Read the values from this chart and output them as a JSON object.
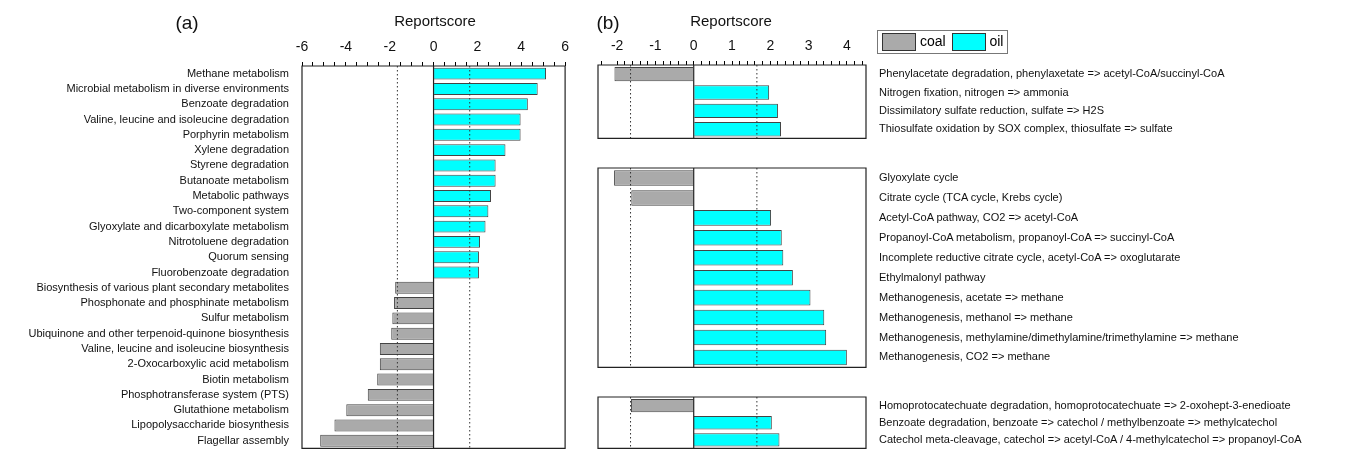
{
  "chart_data": [
    {
      "type": "bar",
      "orientation": "horizontal",
      "title": "(a)",
      "xlabel": "Reportscore",
      "categories": [
        "Methane metabolism",
        "Microbial metabolism in diverse environments",
        "Benzoate degradation",
        "Valine, leucine and isoleucine degradation",
        "Porphyrin metabolism",
        "Xylene degradation",
        "Styrene degradation",
        "Butanoate metabolism",
        "Metabolic pathways",
        "Two-component system",
        "Glyoxylate and dicarboxylate metabolism",
        "Nitrotoluene degradation",
        "Quorum sensing",
        "Fluorobenzoate degradation",
        "Biosynthesis of various plant secondary metabolites",
        "Phosphonate and phosphinate metabolism",
        "Sulfur metabolism",
        "Ubiquinone and other terpenoid-quinone biosynthesis",
        "Valine, leucine and isoleucine biosynthesis",
        "2-Oxocarboxylic acid metabolism",
        "Biotin metabolism",
        "Phosphotransferase system (PTS)",
        "Glutathione metabolism",
        "Lipopolysaccharide biosynthesis",
        "Flagellar assembly"
      ],
      "series": [
        {
          "color": "#aaaaaa",
          "values": [
            null,
            null,
            null,
            null,
            null,
            null,
            null,
            null,
            null,
            null,
            null,
            null,
            null,
            null,
            -1.75,
            -1.8,
            -1.88,
            -1.93,
            -2.45,
            -2.45,
            -2.57,
            -3.0,
            -3.98,
            -4.52,
            -5.17
          ]
        },
        {
          "color": "#00ffff",
          "values": [
            5.13,
            4.75,
            4.3,
            3.97,
            3.97,
            3.28,
            2.83,
            2.83,
            2.62,
            2.5,
            2.37,
            2.12,
            2.07,
            2.07,
            null,
            null,
            null,
            null,
            null,
            null,
            null,
            null,
            null,
            null,
            null
          ]
        }
      ],
      "xlim": [
        -6,
        6
      ],
      "xticks": [
        -6,
        {
          "value": -5.5,
          "label": null
        },
        {
          "value": -5,
          "label": null
        },
        {
          "value": -4.5,
          "label": null
        },
        -4,
        {
          "value": -3.5,
          "label": null
        },
        {
          "value": -3,
          "label": null
        },
        {
          "value": -2.5,
          "label": null
        },
        -2,
        {
          "value": -1.5,
          "label": null
        },
        {
          "value": -1,
          "label": null
        },
        {
          "value": -0.5,
          "label": null
        },
        0,
        {
          "value": 0.5,
          "label": null
        },
        {
          "value": 1,
          "label": null
        },
        {
          "value": 1.5,
          "label": null
        },
        2,
        {
          "value": 2.5,
          "label": null
        },
        {
          "value": 3,
          "label": null
        },
        {
          "value": 3.5,
          "label": null
        },
        4,
        {
          "value": 4.5,
          "label": null
        },
        {
          "value": 5,
          "label": null
        },
        {
          "value": 5.5,
          "label": null
        },
        6
      ],
      "ref_lines": [
        {
          "axis": "x",
          "value": -1.65,
          "line_style": "dotted"
        },
        {
          "axis": "x",
          "value": 1.65,
          "line_style": "dotted"
        }
      ]
    },
    {
      "type": "bar",
      "orientation": "horizontal",
      "title": "(b)",
      "xlabel": "Reportscore",
      "legend": "top",
      "categories": [
        "Phenylacetate degradation, phenylaxetate => acetyl-CoA/succinyl-CoA",
        "Nitrogen fixation, nitrogen => ammonia",
        "Dissimilatory sulfate reduction, sulfate => H2S",
        "Thiosulfate oxidation by SOX complex, thiosulfate => sulfate"
      ],
      "series": [
        {
          "name": "coal",
          "color": "#aaaaaa",
          "values": [
            -2.07,
            null,
            null,
            null
          ]
        },
        {
          "name": "oil",
          "color": "#00ffff",
          "values": [
            null,
            1.97,
            2.2,
            2.28
          ]
        }
      ],
      "xlim": [
        -2.5,
        4.5
      ],
      "xticks": [
        {
          "value": -2.4,
          "label": null
        },
        -2,
        {
          "value": -1.8,
          "label": null
        },
        {
          "value": -1.6,
          "label": null
        },
        {
          "value": -1.4,
          "label": null
        },
        {
          "value": -1.2,
          "label": null
        },
        -1,
        {
          "value": -0.8,
          "label": null
        },
        {
          "value": -0.6,
          "label": null
        },
        {
          "value": -0.4,
          "label": null
        },
        {
          "value": -0.2,
          "label": null
        },
        0,
        {
          "value": 0.2,
          "label": null
        },
        {
          "value": 0.4,
          "label": null
        },
        {
          "value": 0.6,
          "label": null
        },
        {
          "value": 0.8,
          "label": null
        },
        1,
        {
          "value": 1.2,
          "label": null
        },
        {
          "value": 1.4,
          "label": null
        },
        {
          "value": 1.6,
          "label": null
        },
        {
          "value": 1.8,
          "label": null
        },
        2,
        {
          "value": 2.2,
          "label": null
        },
        {
          "value": 2.4,
          "label": null
        },
        {
          "value": 2.6,
          "label": null
        },
        {
          "value": 2.8,
          "label": null
        },
        3,
        {
          "value": 3.2,
          "label": null
        },
        {
          "value": 3.4,
          "label": null
        },
        {
          "value": 3.6,
          "label": null
        },
        {
          "value": 3.8,
          "label": null
        },
        4,
        {
          "value": 4.2,
          "label": null
        },
        {
          "value": 4.4,
          "label": null
        }
      ],
      "ref_lines": [
        {
          "axis": "x",
          "value": -1.65,
          "line_style": "dotted"
        },
        {
          "axis": "x",
          "value": 1.65,
          "line_style": "dotted"
        }
      ]
    },
    {
      "type": "bar",
      "orientation": "horizontal",
      "tick_labels": "y",
      "categories": [
        "Glyoxylate cycle",
        "Citrate cycle (TCA cycle, Krebs cycle)",
        "Acetyl-CoA pathway, CO2 => acetyl-CoA",
        "Propanoyl-CoA metabolism, propanoyl-CoA => succinyl-CoA",
        "Incomplete reductive citrate cycle, acetyl-CoA => oxoglutarate",
        "Ethylmalonyl pathway",
        "Methanogenesis, acetate => methane",
        "Methanogenesis, methanol => methane",
        "Methanogenesis, methylamine/dimethylamine/trimethylamine => methane",
        "Methanogenesis, CO2 => methane"
      ],
      "series": [
        {
          "color": "#aaaaaa",
          "values": [
            -2.08,
            -1.63,
            null,
            null,
            null,
            null,
            null,
            null,
            null,
            null
          ]
        },
        {
          "color": "#00ffff",
          "values": [
            null,
            null,
            2.02,
            2.3,
            2.34,
            2.59,
            3.05,
            3.41,
            3.46,
            4.0
          ]
        }
      ],
      "xlim": [
        -2.5,
        4.5
      ],
      "ref_lines": [
        {
          "axis": "x",
          "value": -1.65,
          "line_style": "dotted"
        },
        {
          "axis": "x",
          "value": 1.65,
          "line_style": "dotted"
        }
      ]
    },
    {
      "type": "bar",
      "orientation": "horizontal",
      "tick_labels": "y",
      "categories": [
        "Homoprotocatechuate degradation, homoprotocatechuate => 2-oxohept-3-enedioate",
        "Benzoate degradation, benzoate => catechol / methylbenzoate => methylcatechol",
        "Catechol meta-cleavage, catechol => acetyl-CoA / 4-methylcatechol => propanoyl-CoA"
      ],
      "series": [
        {
          "color": "#aaaaaa",
          "values": [
            -1.64,
            null,
            null
          ]
        },
        {
          "color": "#00ffff",
          "values": [
            null,
            2.04,
            2.24
          ]
        }
      ],
      "xlim": [
        -2.5,
        4.5
      ],
      "ref_lines": [
        {
          "axis": "x",
          "value": -1.65,
          "line_style": "dotted"
        },
        {
          "axis": "x",
          "value": 1.65,
          "line_style": "dotted"
        }
      ]
    }
  ]
}
